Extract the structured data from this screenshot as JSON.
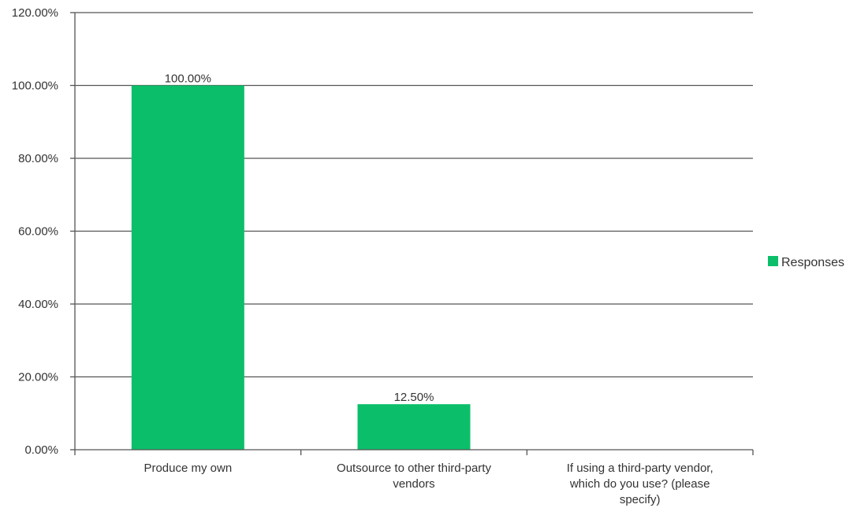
{
  "chart_data": {
    "type": "bar",
    "categories": [
      [
        "Produce my own"
      ],
      [
        "Outsource to other third-party",
        "vendors"
      ],
      [
        "If using a third-party vendor,",
        "which do you use? (please",
        "specify)"
      ]
    ],
    "series": [
      {
        "name": "Responses",
        "values": [
          100.0,
          12.5,
          null
        ],
        "color": "#0bbf6a"
      }
    ],
    "value_labels": [
      "100.00%",
      "12.50%",
      ""
    ],
    "ylim": [
      0,
      120
    ],
    "yticks": [
      0,
      20,
      40,
      60,
      80,
      100,
      120
    ],
    "ytick_labels": [
      "0.00%",
      "20.00%",
      "40.00%",
      "60.00%",
      "80.00%",
      "100.00%",
      "120.00%"
    ],
    "grid": true,
    "legend_position": "right",
    "title": "",
    "xlabel": "",
    "ylabel": ""
  }
}
